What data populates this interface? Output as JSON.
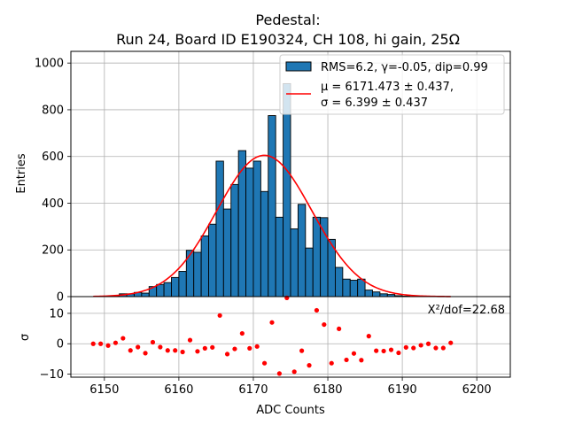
{
  "chart_data": {
    "type": "bar",
    "title_line1": "Pedestal:",
    "title_line2": "Run 24, Board ID E190324, CH 108, hi gain, 25Ω",
    "xlabel": "ADC Counts",
    "ylabel_top": "Entries",
    "ylabel_bottom": "σ",
    "xlim": [
      6145.5,
      6204.5
    ],
    "ylim_top": [
      0,
      1050
    ],
    "ylim_bottom": [
      -11,
      15.5
    ],
    "x_ticks": [
      6150,
      6160,
      6170,
      6180,
      6190,
      6200
    ],
    "y_ticks_top": [
      0,
      200,
      400,
      600,
      800,
      1000
    ],
    "y_ticks_bottom": [
      -10,
      0,
      10
    ],
    "grid": true,
    "legend_position": "top-right",
    "histogram": {
      "name": "RMS=6.2, γ=-0.05, dip=0.99",
      "color": "#1f77b4",
      "bin_left_edges": [
        6148,
        6149,
        6150,
        6151,
        6152,
        6153,
        6154,
        6155,
        6156,
        6157,
        6158,
        6159,
        6160,
        6161,
        6162,
        6163,
        6164,
        6165,
        6166,
        6167,
        6168,
        6169,
        6170,
        6171,
        6172,
        6173,
        6174,
        6175,
        6176,
        6177,
        6178,
        6179,
        6180,
        6181,
        6182,
        6183,
        6184,
        6185,
        6186,
        6187,
        6188,
        6189,
        6190,
        6191,
        6192,
        6193,
        6194,
        6195,
        6196
      ],
      "values": [
        0,
        0,
        1,
        2,
        12,
        12,
        18,
        15,
        43,
        52,
        60,
        82,
        108,
        198,
        190,
        260,
        310,
        580,
        375,
        480,
        625,
        550,
        580,
        450,
        775,
        340,
        912,
        290,
        395,
        208,
        340,
        338,
        245,
        125,
        75,
        70,
        75,
        28,
        20,
        12,
        9,
        4,
        2,
        1,
        1,
        0,
        0,
        0,
        0
      ]
    },
    "fit": {
      "mu_label": "μ = 6171.473 ± 0.437,",
      "sigma_label": "σ = 6.399 ± 0.437",
      "mu": 6171.473,
      "sigma": 6.399,
      "amplitude": 605,
      "x_range": [
        6148.5,
        6196.5
      ],
      "color": "#ff0000"
    },
    "residuals": {
      "annotation": "X²/dof=22.68",
      "color": "#ff0000",
      "x": [
        6148.5,
        6149.5,
        6150.5,
        6151.5,
        6152.5,
        6153.5,
        6154.5,
        6155.5,
        6156.5,
        6157.5,
        6158.5,
        6159.5,
        6160.5,
        6161.5,
        6162.5,
        6163.5,
        6164.5,
        6165.5,
        6166.5,
        6167.5,
        6168.5,
        6169.5,
        6170.5,
        6171.5,
        6172.5,
        6173.5,
        6174.5,
        6175.5,
        6176.5,
        6177.5,
        6178.5,
        6179.5,
        6180.5,
        6181.5,
        6182.5,
        6183.5,
        6184.5,
        6185.5,
        6186.5,
        6187.5,
        6188.5,
        6189.5,
        6190.5,
        6191.5,
        6192.5,
        6193.5,
        6194.5,
        6195.5,
        6196.5
      ],
      "y": [
        0,
        0,
        -0.6,
        0.3,
        1.8,
        -2.2,
        -1.1,
        -3.1,
        0.5,
        -1.1,
        -2.2,
        -2.2,
        -2.7,
        1.2,
        -2.5,
        -1.5,
        -1.2,
        9.3,
        -3.4,
        -1.7,
        3.4,
        -1.5,
        -0.9,
        -6.4,
        7.0,
        -9.8,
        15.1,
        -9.2,
        -2.3,
        -7.1,
        11.0,
        6.3,
        -6.4,
        4.9,
        -5.3,
        -3.2,
        -5.4,
        2.5,
        -2.3,
        -2.4,
        -2.0,
        -3.0,
        -1.2,
        -1.4,
        -0.5,
        0.0,
        -1.4,
        -1.4,
        0.3
      ]
    }
  }
}
